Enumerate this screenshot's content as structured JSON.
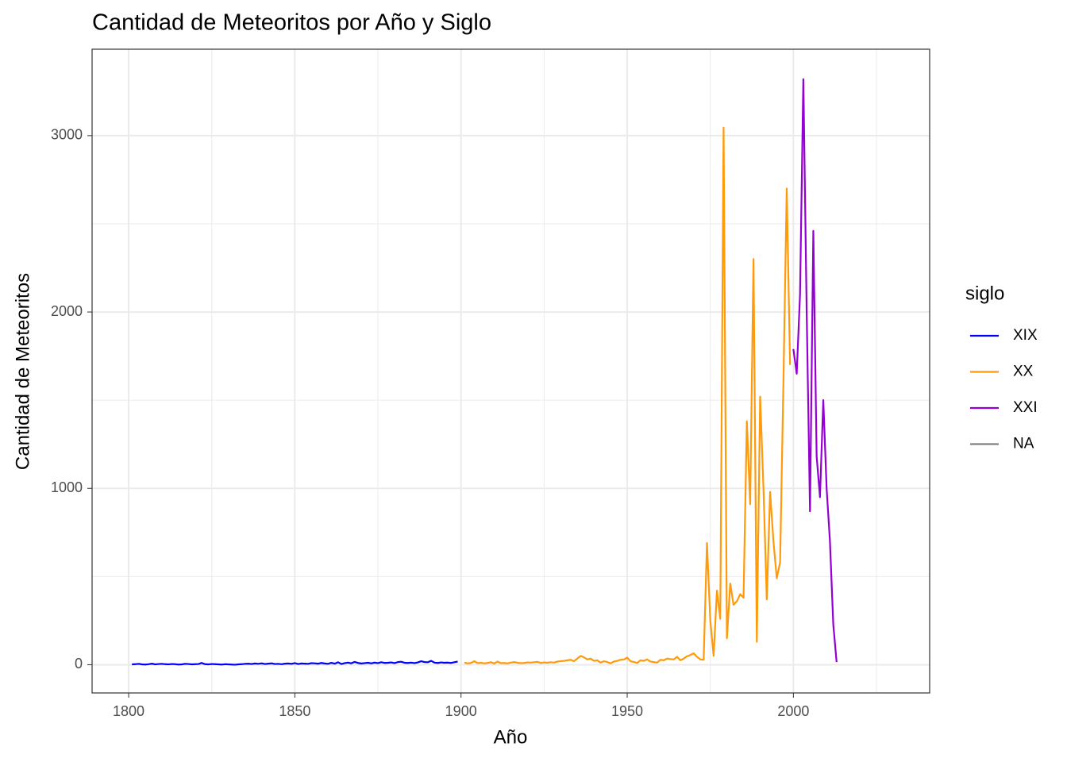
{
  "chart_data": {
    "type": "line",
    "title": "Cantidad de Meteoritos por Año y Siglo",
    "x_label": "Año",
    "y_label": "Cantidad de Meteoritos",
    "legend_title": "siglo",
    "legend": "right",
    "grid": true,
    "xlim": [
      1789,
      2041
    ],
    "ylim": [
      -160,
      3490
    ],
    "xticks": [
      1800,
      1850,
      1900,
      1950,
      2000
    ],
    "yticks": [
      0,
      1000,
      2000,
      3000
    ],
    "series": [
      {
        "name": "XIX",
        "color": "#0000ff",
        "x": [
          1801,
          1802,
          1803,
          1804,
          1805,
          1806,
          1807,
          1808,
          1809,
          1810,
          1811,
          1812,
          1813,
          1814,
          1815,
          1816,
          1817,
          1818,
          1819,
          1820,
          1821,
          1822,
          1823,
          1824,
          1825,
          1826,
          1827,
          1828,
          1829,
          1830,
          1831,
          1832,
          1833,
          1834,
          1835,
          1836,
          1837,
          1838,
          1839,
          1840,
          1841,
          1842,
          1843,
          1844,
          1845,
          1846,
          1847,
          1848,
          1849,
          1850,
          1851,
          1852,
          1853,
          1854,
          1855,
          1856,
          1857,
          1858,
          1859,
          1860,
          1861,
          1862,
          1863,
          1864,
          1865,
          1866,
          1867,
          1868,
          1869,
          1870,
          1871,
          1872,
          1873,
          1874,
          1875,
          1876,
          1877,
          1878,
          1879,
          1880,
          1881,
          1882,
          1883,
          1884,
          1885,
          1886,
          1887,
          1888,
          1889,
          1890,
          1891,
          1892,
          1893,
          1894,
          1895,
          1896,
          1897,
          1898,
          1899
        ],
        "values": [
          2,
          3,
          5,
          2,
          1,
          3,
          6,
          2,
          4,
          5,
          3,
          2,
          4,
          3,
          1,
          2,
          5,
          4,
          2,
          3,
          4,
          10,
          3,
          2,
          4,
          3,
          2,
          1,
          3,
          2,
          1,
          0,
          2,
          3,
          5,
          6,
          4,
          7,
          5,
          8,
          4,
          6,
          8,
          4,
          5,
          3,
          6,
          7,
          5,
          9,
          4,
          7,
          6,
          5,
          9,
          8,
          6,
          10,
          7,
          5,
          11,
          6,
          14,
          4,
          9,
          12,
          8,
          16,
          10,
          7,
          9,
          11,
          8,
          12,
          9,
          14,
          10,
          11,
          13,
          9,
          15,
          17,
          11,
          10,
          12,
          9,
          13,
          20,
          15,
          14,
          22,
          12,
          10,
          13,
          11,
          12,
          10,
          14,
          18
        ]
      },
      {
        "name": "XX",
        "color": "#ff9a0a",
        "x": [
          1901,
          1902,
          1903,
          1904,
          1905,
          1906,
          1907,
          1908,
          1909,
          1910,
          1911,
          1912,
          1913,
          1914,
          1915,
          1916,
          1917,
          1918,
          1919,
          1920,
          1921,
          1922,
          1923,
          1924,
          1925,
          1926,
          1927,
          1928,
          1929,
          1930,
          1931,
          1932,
          1933,
          1934,
          1935,
          1936,
          1937,
          1938,
          1939,
          1940,
          1941,
          1942,
          1943,
          1944,
          1945,
          1946,
          1947,
          1948,
          1949,
          1950,
          1951,
          1952,
          1953,
          1954,
          1955,
          1956,
          1957,
          1958,
          1959,
          1960,
          1961,
          1962,
          1963,
          1964,
          1965,
          1966,
          1967,
          1968,
          1969,
          1970,
          1971,
          1972,
          1973,
          1974,
          1975,
          1976,
          1977,
          1978,
          1979,
          1980,
          1981,
          1982,
          1983,
          1984,
          1985,
          1986,
          1987,
          1988,
          1989,
          1990,
          1991,
          1992,
          1993,
          1994,
          1995,
          1996,
          1997,
          1998,
          1999
        ],
        "values": [
          12,
          8,
          10,
          20,
          9,
          11,
          8,
          10,
          14,
          7,
          18,
          9,
          10,
          8,
          12,
          15,
          11,
          9,
          10,
          13,
          12,
          14,
          16,
          10,
          13,
          11,
          14,
          12,
          18,
          20,
          22,
          25,
          28,
          20,
          35,
          50,
          42,
          30,
          35,
          22,
          25,
          12,
          20,
          15,
          8,
          18,
          22,
          28,
          30,
          40,
          20,
          15,
          10,
          25,
          22,
          30,
          18,
          15,
          12,
          28,
          25,
          35,
          32,
          30,
          45,
          25,
          35,
          48,
          55,
          65,
          45,
          30,
          28,
          690,
          250,
          50,
          420,
          260,
          3045,
          150,
          460,
          340,
          360,
          400,
          380,
          1380,
          910,
          2300,
          130,
          1520,
          1000,
          370,
          980,
          700,
          490,
          580,
          1600,
          2700,
          1700
        ]
      },
      {
        "name": "XXI",
        "color": "#9400d3",
        "x": [
          2000,
          2001,
          2002,
          2003,
          2004,
          2005,
          2006,
          2007,
          2008,
          2009,
          2010,
          2011,
          2012,
          2013
        ],
        "values": [
          1790,
          1650,
          2100,
          3320,
          2000,
          870,
          2460,
          1180,
          950,
          1500,
          1000,
          700,
          230,
          15
        ]
      },
      {
        "name": "NA",
        "color": "#7f7f7f",
        "x": [],
        "values": []
      }
    ]
  }
}
